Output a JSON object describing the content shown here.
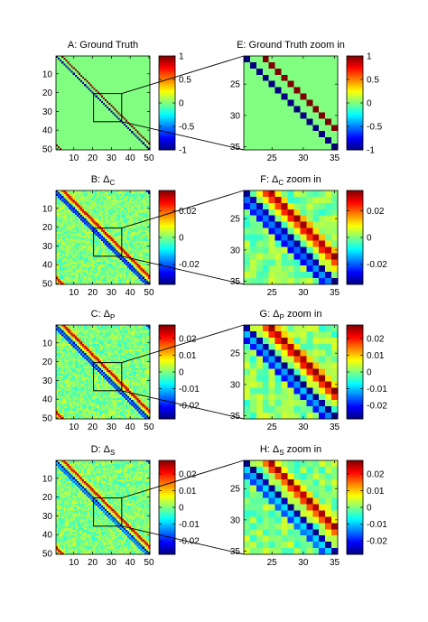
{
  "chart_data": [
    {
      "id": "A",
      "type": "heatmap",
      "title": {
        "prefix": "A: Ground Truth",
        "sub": "",
        "suffix": ""
      },
      "size": 50,
      "display_range": [
        1,
        50
      ],
      "xticks": [
        10,
        20,
        30,
        40,
        50
      ],
      "yticks": [
        10,
        20,
        30,
        40,
        50
      ],
      "clim": [
        -1,
        1
      ],
      "colorbar_ticks": [
        "1",
        "0.5",
        "0",
        "-0.5",
        "-1"
      ],
      "colorbar_values": [
        1,
        0.5,
        0,
        -0.5,
        -1
      ],
      "pattern": {
        "kind": "truth",
        "background": 0.0,
        "bands": [
          {
            "offset": 0,
            "value": -1
          },
          {
            "offset": 3,
            "value": 1
          }
        ]
      },
      "zoom_box": [
        21,
        35
      ]
    },
    {
      "id": "E",
      "type": "heatmap",
      "title": {
        "prefix": "E: Ground Truth zoom in",
        "sub": "",
        "suffix": ""
      },
      "size": 50,
      "display_range": [
        21,
        35
      ],
      "xticks": [
        25,
        30,
        35
      ],
      "yticks": [
        25,
        30,
        35
      ],
      "clim": [
        -1,
        1
      ],
      "colorbar_ticks": [
        "1",
        "0.5",
        "0",
        "-0.5",
        "-1"
      ],
      "colorbar_values": [
        1,
        0.5,
        0,
        -0.5,
        -1
      ],
      "pattern": {
        "kind": "truth",
        "background": 0.0,
        "bands": [
          {
            "offset": 0,
            "value": -1
          },
          {
            "offset": 3,
            "value": 1
          }
        ]
      }
    },
    {
      "id": "B",
      "type": "heatmap",
      "title": {
        "prefix": "B: Δ",
        "sub": "C",
        "suffix": ""
      },
      "size": 50,
      "display_range": [
        1,
        50
      ],
      "xticks": [
        10,
        20,
        30,
        40,
        50
      ],
      "yticks": [
        10,
        20,
        30,
        40,
        50
      ],
      "clim": [
        -0.035,
        0.035
      ],
      "colorbar_ticks": [
        "0.02",
        "0",
        "-0.02"
      ],
      "colorbar_values": [
        0.02,
        0,
        -0.02
      ],
      "pattern": {
        "kind": "estimate",
        "background": 0.0,
        "noise": 0.006,
        "seed": 11,
        "bands": [
          {
            "offset": 0,
            "value": -0.033
          },
          {
            "offset": 2,
            "value": 0.008
          },
          {
            "offset": 3,
            "value": 0.022
          },
          {
            "offset": 4,
            "value": 0.032
          },
          {
            "offset": 5,
            "value": 0.012
          },
          {
            "offset": -1,
            "value": -0.018
          },
          {
            "offset": -2,
            "value": -0.026
          }
        ]
      },
      "zoom_box": [
        21,
        35
      ]
    },
    {
      "id": "F",
      "type": "heatmap",
      "title": {
        "prefix": "F: Δ",
        "sub": "C",
        "suffix": " zoom in"
      },
      "size": 50,
      "display_range": [
        21,
        35
      ],
      "xticks": [
        25,
        30,
        35
      ],
      "yticks": [
        25,
        30,
        35
      ],
      "clim": [
        -0.035,
        0.035
      ],
      "colorbar_ticks": [
        "0.02",
        "0",
        "-0.02"
      ],
      "colorbar_values": [
        0.02,
        0,
        -0.02
      ],
      "pattern": {
        "kind": "estimate",
        "background": 0.0,
        "noise": 0.006,
        "seed": 11,
        "bands": [
          {
            "offset": 0,
            "value": -0.033
          },
          {
            "offset": 2,
            "value": 0.008
          },
          {
            "offset": 3,
            "value": 0.022
          },
          {
            "offset": 4,
            "value": 0.032
          },
          {
            "offset": 5,
            "value": 0.012
          },
          {
            "offset": -1,
            "value": -0.018
          },
          {
            "offset": -2,
            "value": -0.026
          }
        ]
      }
    },
    {
      "id": "C",
      "type": "heatmap",
      "title": {
        "prefix": "C: Δ",
        "sub": "P",
        "suffix": ""
      },
      "size": 50,
      "display_range": [
        1,
        50
      ],
      "xticks": [
        10,
        20,
        30,
        40,
        50
      ],
      "yticks": [
        10,
        20,
        30,
        40,
        50
      ],
      "clim": [
        -0.028,
        0.028
      ],
      "colorbar_ticks": [
        "0.02",
        "0.01",
        "0",
        "-0.01",
        "-0.02"
      ],
      "colorbar_values": [
        0.02,
        0.01,
        0,
        -0.01,
        -0.02
      ],
      "pattern": {
        "kind": "estimate",
        "background": 0.0,
        "noise": 0.005,
        "seed": 23,
        "bands": [
          {
            "offset": 0,
            "value": -0.027
          },
          {
            "offset": 2,
            "value": 0.006
          },
          {
            "offset": 3,
            "value": 0.018
          },
          {
            "offset": 4,
            "value": 0.026
          },
          {
            "offset": 5,
            "value": 0.01
          },
          {
            "offset": -1,
            "value": -0.012
          },
          {
            "offset": -2,
            "value": -0.02
          }
        ]
      },
      "zoom_box": [
        21,
        35
      ]
    },
    {
      "id": "G",
      "type": "heatmap",
      "title": {
        "prefix": "G: Δ",
        "sub": "P",
        "suffix": " zoom in"
      },
      "size": 50,
      "display_range": [
        21,
        35
      ],
      "xticks": [
        25,
        30,
        35
      ],
      "yticks": [
        25,
        30,
        35
      ],
      "clim": [
        -0.028,
        0.028
      ],
      "colorbar_ticks": [
        "0.02",
        "0.01",
        "0",
        "-0.01",
        "-0.02"
      ],
      "colorbar_values": [
        0.02,
        0.01,
        0,
        -0.01,
        -0.02
      ],
      "pattern": {
        "kind": "estimate",
        "background": 0.0,
        "noise": 0.005,
        "seed": 23,
        "bands": [
          {
            "offset": 0,
            "value": -0.027
          },
          {
            "offset": 2,
            "value": 0.006
          },
          {
            "offset": 3,
            "value": 0.018
          },
          {
            "offset": 4,
            "value": 0.026
          },
          {
            "offset": 5,
            "value": 0.01
          },
          {
            "offset": -1,
            "value": -0.012
          },
          {
            "offset": -2,
            "value": -0.02
          }
        ]
      }
    },
    {
      "id": "D",
      "type": "heatmap",
      "title": {
        "prefix": "D: Δ",
        "sub": "S",
        "suffix": ""
      },
      "size": 50,
      "display_range": [
        1,
        50
      ],
      "xticks": [
        10,
        20,
        30,
        40,
        50
      ],
      "yticks": [
        10,
        20,
        30,
        40,
        50
      ],
      "clim": [
        -0.028,
        0.028
      ],
      "colorbar_ticks": [
        "0.02",
        "0.01",
        "0",
        "-0.01",
        "-0.02"
      ],
      "colorbar_values": [
        0.02,
        0.01,
        0,
        -0.01,
        -0.02
      ],
      "pattern": {
        "kind": "estimate",
        "background": 0.0,
        "noise": 0.005,
        "seed": 37,
        "bands": [
          {
            "offset": 0,
            "value": -0.027
          },
          {
            "offset": 2,
            "value": 0.004
          },
          {
            "offset": 3,
            "value": 0.016
          },
          {
            "offset": 4,
            "value": 0.026
          },
          {
            "offset": 5,
            "value": 0.008
          },
          {
            "offset": -1,
            "value": -0.01
          },
          {
            "offset": -2,
            "value": -0.016
          }
        ]
      },
      "zoom_box": [
        21,
        35
      ]
    },
    {
      "id": "H",
      "type": "heatmap",
      "title": {
        "prefix": "H: Δ",
        "sub": "S",
        "suffix": " zoom in"
      },
      "size": 50,
      "display_range": [
        21,
        35
      ],
      "xticks": [
        25,
        30,
        35
      ],
      "yticks": [
        25,
        30,
        35
      ],
      "clim": [
        -0.028,
        0.028
      ],
      "colorbar_ticks": [
        "0.02",
        "0.01",
        "0",
        "-0.01",
        "-0.02"
      ],
      "colorbar_values": [
        0.02,
        0.01,
        0,
        -0.01,
        -0.02
      ],
      "pattern": {
        "kind": "estimate",
        "background": 0.0,
        "noise": 0.005,
        "seed": 37,
        "bands": [
          {
            "offset": 0,
            "value": -0.027
          },
          {
            "offset": 2,
            "value": 0.004
          },
          {
            "offset": 3,
            "value": 0.016
          },
          {
            "offset": 4,
            "value": 0.026
          },
          {
            "offset": 5,
            "value": 0.008
          },
          {
            "offset": -1,
            "value": -0.01
          },
          {
            "offset": -2,
            "value": -0.016
          }
        ]
      }
    }
  ]
}
